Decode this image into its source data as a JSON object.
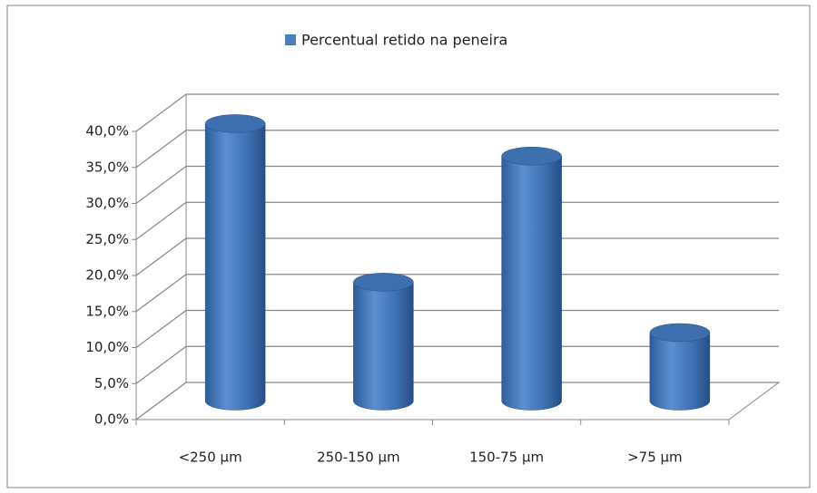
{
  "chart_data": {
    "type": "bar3d",
    "categories": [
      "<250 µm",
      "250-150 µm",
      "150-75 µm",
      ">75 µm"
    ],
    "series": [
      {
        "name": "Percentual retido na peneira",
        "color": "#4a7ebf",
        "values": [
          38.5,
          16.5,
          34,
          9.5
        ]
      }
    ],
    "ylim": [
      0,
      40
    ],
    "yticks": [
      {
        "value": 0,
        "label": "0,0%"
      },
      {
        "value": 5,
        "label": "5,0%"
      },
      {
        "value": 10,
        "label": "10,0%"
      },
      {
        "value": 15,
        "label": "15,0%"
      },
      {
        "value": 20,
        "label": "20,0%"
      },
      {
        "value": 25,
        "label": "25,0%"
      },
      {
        "value": 30,
        "label": "30,0%"
      },
      {
        "value": 35,
        "label": "35,0%"
      },
      {
        "value": 40,
        "label": "40,0%"
      }
    ],
    "grid": true,
    "legend": "top"
  }
}
